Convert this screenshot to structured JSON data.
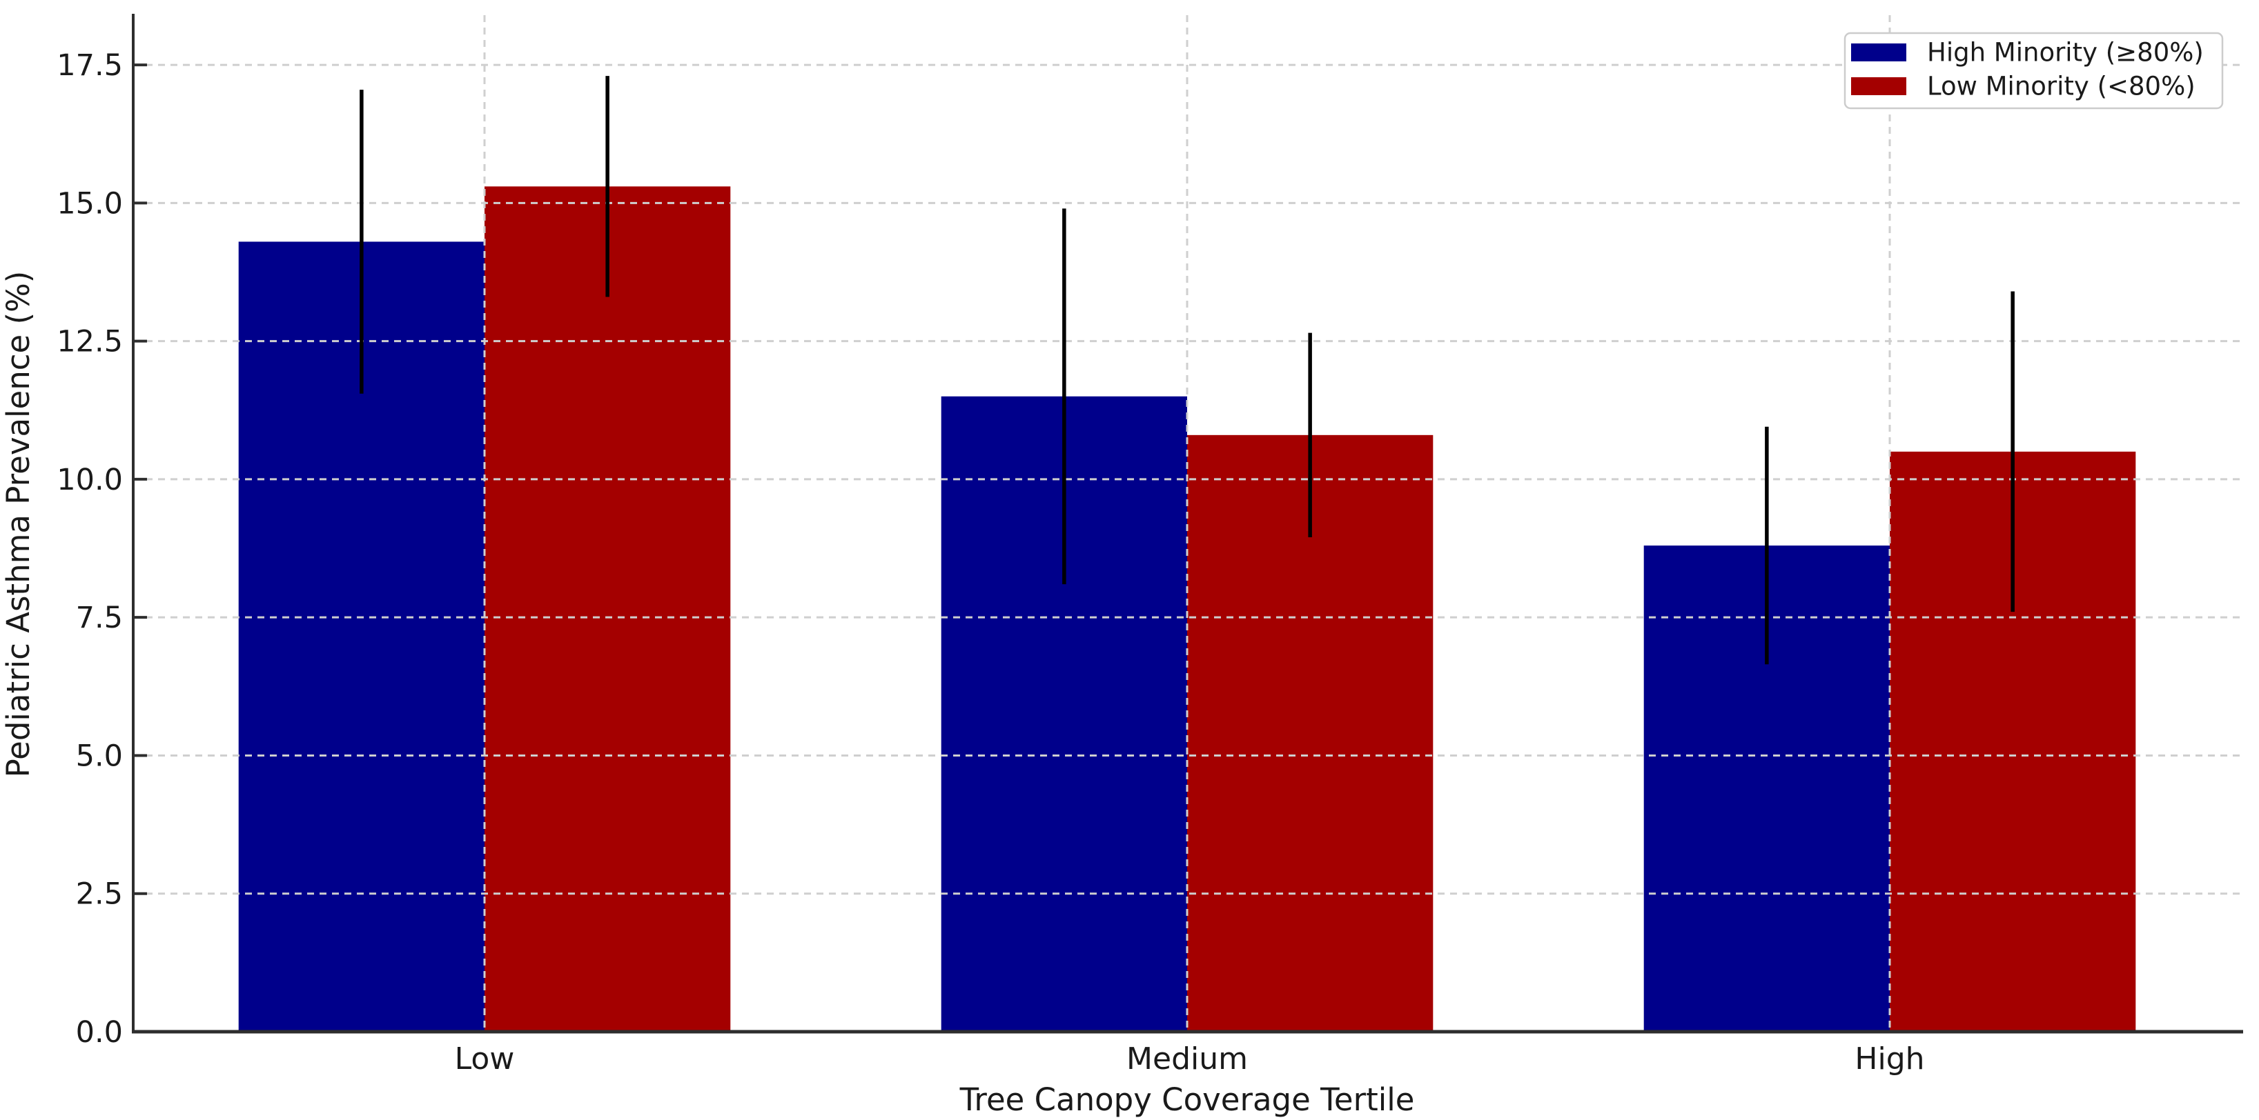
{
  "chart_data": {
    "type": "bar",
    "title": "",
    "categories": [
      "Low",
      "Medium",
      "High"
    ],
    "category_slugs": [
      "low",
      "medium",
      "high"
    ],
    "series": [
      {
        "name": "High Minority (≥80%)",
        "slug": "high-minority",
        "color": "#00008B",
        "values": [
          14.3,
          11.5,
          8.8
        ],
        "errors": [
          2.75,
          3.4,
          2.15
        ]
      },
      {
        "name": "Low Minority (<80%)",
        "slug": "low-minority",
        "color": "#A40000",
        "values": [
          15.3,
          10.8,
          10.5
        ],
        "errors": [
          2.0,
          1.85,
          2.9
        ]
      }
    ],
    "xlabel": "Tree Canopy Coverage Tertile",
    "ylabel": "Pediatric Asthma Prevalence (%)",
    "ylim": [
      0,
      18.4
    ],
    "xlim": [
      -0.5,
      2.5
    ],
    "yticks": [
      0,
      2.5,
      5,
      7.5,
      10,
      12.5,
      15,
      17.5
    ],
    "ytick_decimals": 1,
    "bar_width": 0.35,
    "grid": "dashed gridlines at y-ticks and category centers, drawn above bars",
    "error_bar_style": "vertical black lines, no caps",
    "legend_position": "upper right",
    "colors": {
      "grid": "#cfcfcf",
      "spine": "#2e2e2e",
      "tick": "#2e2e2e",
      "text": "#1a1a1a",
      "errorbar": "#000000",
      "legend_border": "#cccccc",
      "background": "#ffffff"
    }
  }
}
